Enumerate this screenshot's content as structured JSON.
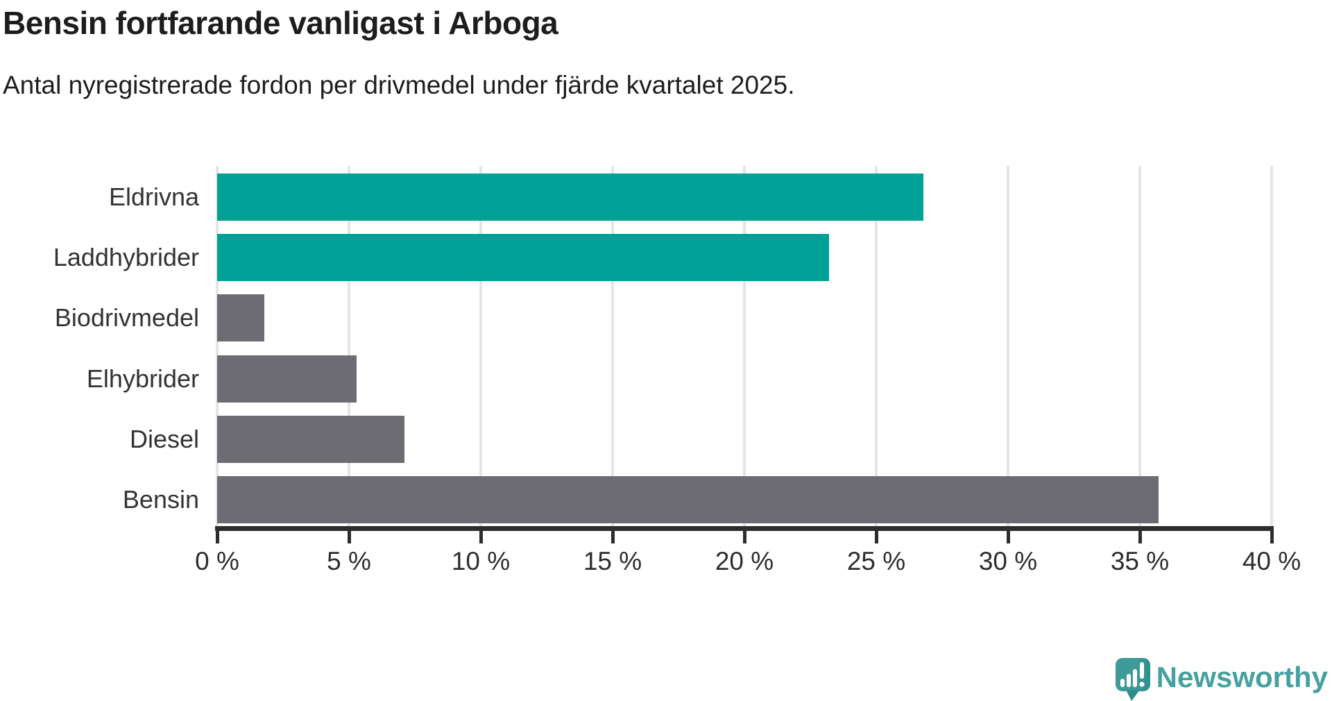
{
  "header": {
    "title": "Bensin fortfarande vanligast i Arboga",
    "subtitle": "Antal nyregistrerade fordon per drivmedel under fjärde kvartalet 2025."
  },
  "chart_data": {
    "type": "bar",
    "orientation": "horizontal",
    "title": "Bensin fortfarande vanligast i Arboga",
    "subtitle": "Antal nyregistrerade fordon per drivmedel under fjärde kvartalet 2025.",
    "categories": [
      "Eldrivna",
      "Laddhybrider",
      "Biodrivmedel",
      "Elhybrider",
      "Diesel",
      "Bensin"
    ],
    "values": [
      26.8,
      23.2,
      1.8,
      5.3,
      7.1,
      35.7
    ],
    "unit": "%",
    "xlim": [
      0,
      40
    ],
    "x_tick_values": [
      0,
      5,
      10,
      15,
      20,
      25,
      30,
      35,
      40
    ],
    "x_tick_labels": [
      "0 %",
      "5 %",
      "10 %",
      "15 %",
      "20 %",
      "25 %",
      "30 %",
      "35 %",
      "40 %"
    ],
    "grid": true,
    "legend": "none",
    "bar_colors": [
      "#00a096",
      "#00a096",
      "#6c6c72",
      "#6c6c72",
      "#6c6c72",
      "#6c6c72"
    ],
    "highlight_color": "#00a096",
    "default_color": "#6c6c72",
    "gridline_color": "#e5e5e5",
    "axis_color": "#2d2d2d"
  },
  "footer": {
    "brand": "Newsworthy",
    "brand_color": "#47a1a0",
    "logo_bubble_color": "#3f9b99",
    "logo_bubble_shade": "#2f8e8c",
    "logo_icon": "newsworthy-speech-bubble-bar-chart-icon"
  }
}
